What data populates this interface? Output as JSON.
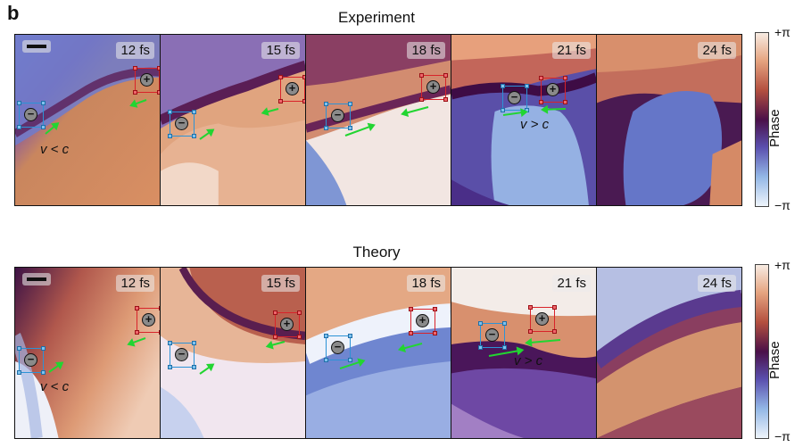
{
  "panel_letter": "b",
  "rows": [
    {
      "title": "Experiment",
      "frames": [
        {
          "time": "12 fs",
          "annotation": "v < c"
        },
        {
          "time": "15 fs",
          "annotation": ""
        },
        {
          "time": "18 fs",
          "annotation": ""
        },
        {
          "time": "21 fs",
          "annotation": "v > c"
        },
        {
          "time": "24 fs",
          "annotation": ""
        }
      ]
    },
    {
      "title": "Theory",
      "frames": [
        {
          "time": "12 fs",
          "annotation": "v < c"
        },
        {
          "time": "15 fs",
          "annotation": ""
        },
        {
          "time": "18 fs",
          "annotation": ""
        },
        {
          "time": "21 fs",
          "annotation": "v > c"
        },
        {
          "time": "24 fs",
          "annotation": ""
        }
      ]
    }
  ],
  "colorbar": {
    "label": "Phase",
    "max_label": "+π",
    "min_label": "−π"
  },
  "marker_symbols": {
    "negative": "−",
    "positive": "+"
  },
  "colors": {
    "arrow": "#22d531",
    "negative_box": "#2c93d6",
    "positive_box": "#d8232a"
  }
}
